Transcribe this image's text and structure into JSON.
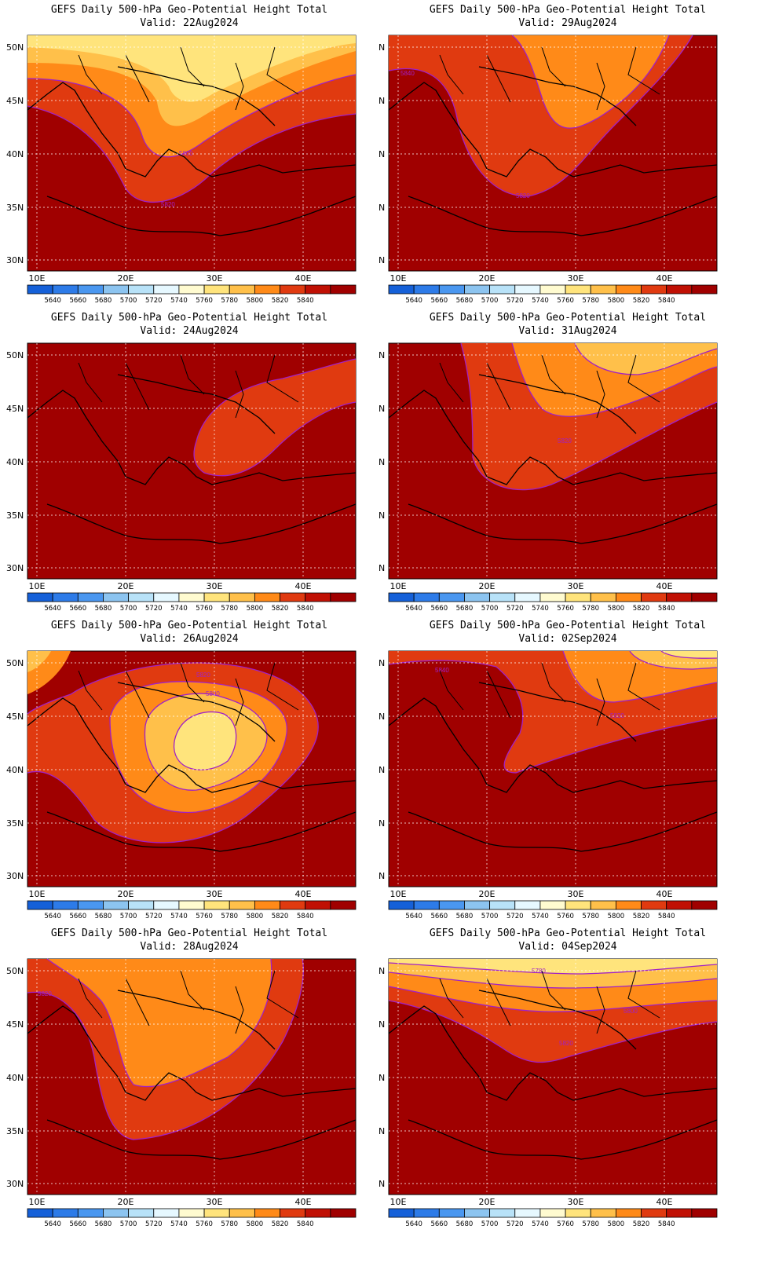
{
  "colors": {
    "bins": [
      "#1560d8",
      "#2d7be8",
      "#4a97f0",
      "#8cc4f0",
      "#b8e2f8",
      "#e6f8ff",
      "#fffbd0",
      "#ffe47c",
      "#ffc04a",
      "#ff8a18",
      "#e03a10",
      "#c01004",
      "#a00000"
    ],
    "contour_line": "#a020c8",
    "grid": "#ffffff"
  },
  "colorbar": {
    "labels": [
      "5640",
      "5660",
      "5680",
      "5700",
      "5720",
      "5740",
      "5760",
      "5780",
      "5800",
      "5820",
      "5840"
    ]
  },
  "axes": {
    "lat_labels": [
      "50N",
      "45N",
      "40N",
      "35N",
      "30N"
    ],
    "lon_labels": [
      "10E",
      "20E",
      "30E",
      "40E"
    ]
  },
  "panels": [
    {
      "title": "GEFS Daily 500-hPa Geo-Potential Height Total",
      "valid": "Valid: 22Aug2024",
      "contour_labels": [
        "5800",
        "5820"
      ]
    },
    {
      "title": "GEFS Daily 500-hPa Geo-Potential Height Total",
      "valid": "Valid: 29Aug2024",
      "contour_labels": [
        "5840",
        "5820"
      ]
    },
    {
      "title": "GEFS Daily 500-hPa Geo-Potential Height Total",
      "valid": "Valid: 24Aug2024",
      "contour_labels": []
    },
    {
      "title": "GEFS Daily 500-hPa Geo-Potential Height Total",
      "valid": "Valid: 31Aug2024",
      "contour_labels": [
        "5820"
      ]
    },
    {
      "title": "GEFS Daily 500-hPa Geo-Potential Height Total",
      "valid": "Valid: 26Aug2024",
      "contour_labels": [
        "5820",
        "5800"
      ]
    },
    {
      "title": "GEFS Daily 500-hPa Geo-Potential Height Total",
      "valid": "Valid: 02Sep2024",
      "contour_labels": [
        "5840",
        "5820"
      ]
    },
    {
      "title": "GEFS Daily 500-hPa Geo-Potential Height Total",
      "valid": "Valid: 28Aug2024",
      "contour_labels": [
        "5820"
      ]
    },
    {
      "title": "GEFS Daily 500-hPa Geo-Potential Height Total",
      "valid": "Valid: 04Sep2024",
      "contour_labels": [
        "5780",
        "5800",
        "5820"
      ]
    }
  ]
}
